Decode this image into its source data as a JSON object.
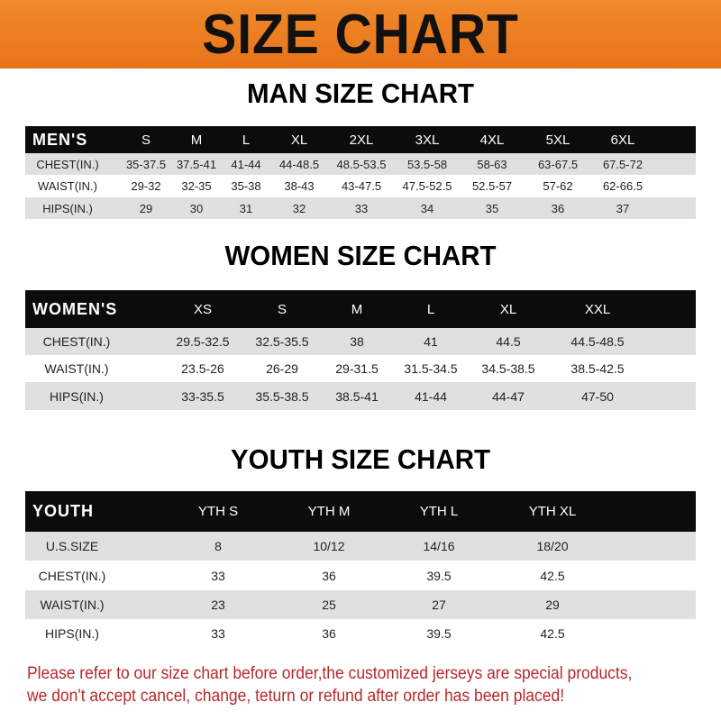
{
  "title": "SIZE CHART",
  "colors": {
    "banner": "#ec7d22",
    "header_row": "#0c0c0c",
    "stripe": "#e0e0e0",
    "notice": "#b8282a"
  },
  "men": {
    "heading": "MAN SIZE CHART",
    "columns": [
      "MEN'S",
      "S",
      "M",
      "L",
      "XL",
      "2XL",
      "3XL",
      "4XL",
      "5XL",
      "6XL"
    ],
    "rows": [
      [
        "CHEST(IN.)",
        "35-37.5",
        "37.5-41",
        "41-44",
        "44-48.5",
        "48.5-53.5",
        "53.5-58",
        "58-63",
        "63-67.5",
        "67.5-72"
      ],
      [
        "WAIST(IN.)",
        "29-32",
        "32-35",
        "35-38",
        "38-43",
        "43-47.5",
        "47.5-52.5",
        "52.5-57",
        "57-62",
        "62-66.5"
      ],
      [
        "HIPS(IN.)",
        "29",
        "30",
        "31",
        "32",
        "33",
        "34",
        "35",
        "36",
        "37"
      ]
    ]
  },
  "women": {
    "heading": "WOMEN SIZE CHART",
    "columns": [
      "WOMEN'S",
      "XS",
      "S",
      "M",
      "L",
      "XL",
      "XXL"
    ],
    "rows": [
      [
        "CHEST(IN.)",
        "29.5-32.5",
        "32.5-35.5",
        "38",
        "41",
        "44.5",
        "44.5-48.5"
      ],
      [
        "WAIST(IN.)",
        "23.5-26",
        "26-29",
        "29-31.5",
        "31.5-34.5",
        "34.5-38.5",
        "38.5-42.5"
      ],
      [
        "HIPS(IN.)",
        "33-35.5",
        "35.5-38.5",
        "38.5-41",
        "41-44",
        "44-47",
        "47-50"
      ]
    ]
  },
  "youth": {
    "heading": "YOUTH SIZE CHART",
    "columns": [
      "YOUTH",
      "YTH S",
      "YTH M",
      "YTH L",
      "YTH XL"
    ],
    "rows": [
      [
        "U.S.SIZE",
        "8",
        "10/12",
        "14/16",
        "18/20"
      ],
      [
        "CHEST(IN.)",
        "33",
        "36",
        "39.5",
        "42.5"
      ],
      [
        "WAIST(IN.)",
        "23",
        "25",
        "27",
        "29"
      ],
      [
        "HIPS(IN.)",
        "33",
        "36",
        "39.5",
        "42.5"
      ]
    ]
  },
  "notice": {
    "line1": "Please refer to our size chart before order,the customized jerseys are special products,",
    "line2": "we don't accept cancel, change, teturn or refund after order has been placed!"
  }
}
